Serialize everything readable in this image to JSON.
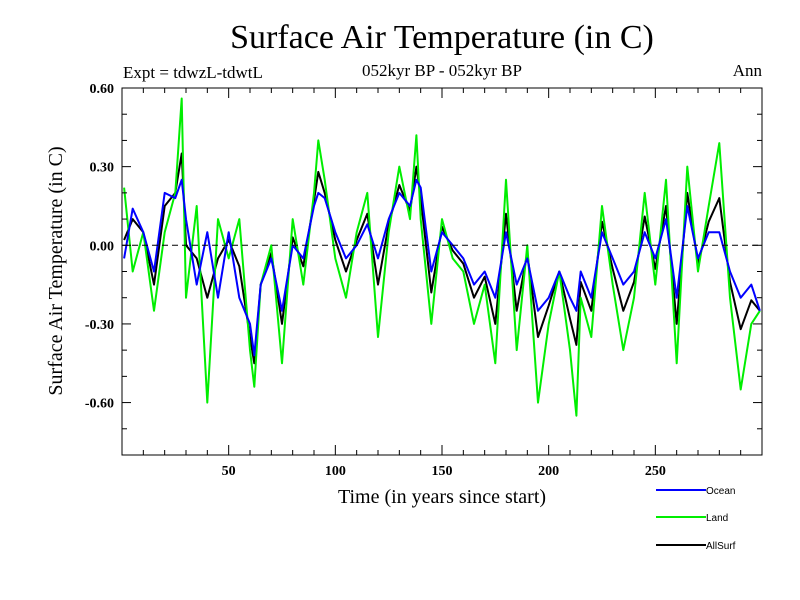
{
  "chart_data": {
    "type": "line",
    "title": "Surface Air Temperature (in C)",
    "subtitle": "052kyr BP - 052kyr BP",
    "left_note": "Expt = tdwzL-tdwtL",
    "right_note": "Ann",
    "xlabel": "Time (in years since start)",
    "ylabel": "Surface Air Temperature (in C)",
    "xlim": [
      0,
      300
    ],
    "ylim": [
      -0.8,
      0.6
    ],
    "x_ticks": [
      50,
      100,
      150,
      200,
      250
    ],
    "x_tick_labels": [
      "50",
      "100",
      "150",
      "200",
      "250"
    ],
    "y_ticks": [
      0.6,
      0.3,
      0.0,
      -0.3,
      -0.6
    ],
    "y_tick_labels": [
      "0.60",
      "0.30",
      "0.00",
      "-0.30",
      "-0.60"
    ],
    "zero_line": "dashed",
    "grid": false,
    "legend_position": "bottom-right",
    "x": [
      1,
      5,
      10,
      15,
      20,
      25,
      28,
      30,
      35,
      40,
      45,
      50,
      55,
      60,
      62,
      65,
      70,
      75,
      80,
      85,
      90,
      92,
      95,
      100,
      105,
      110,
      115,
      120,
      125,
      130,
      135,
      138,
      140,
      145,
      150,
      155,
      160,
      165,
      170,
      175,
      180,
      185,
      190,
      195,
      200,
      205,
      210,
      213,
      215,
      220,
      225,
      230,
      235,
      240,
      245,
      250,
      255,
      260,
      265,
      270,
      275,
      280,
      285,
      290,
      295,
      299
    ],
    "series": [
      {
        "name": "Ocean",
        "color": "#0000ff",
        "values": [
          -0.05,
          0.14,
          0.05,
          -0.1,
          0.2,
          0.18,
          0.25,
          0.1,
          -0.15,
          0.05,
          -0.2,
          0.05,
          -0.2,
          -0.3,
          -0.42,
          -0.15,
          -0.05,
          -0.25,
          0.0,
          -0.05,
          0.15,
          0.2,
          0.18,
          0.05,
          -0.05,
          0.0,
          0.08,
          -0.05,
          0.1,
          0.2,
          0.15,
          0.25,
          0.22,
          -0.1,
          0.05,
          0.0,
          -0.05,
          -0.15,
          -0.1,
          -0.2,
          0.05,
          -0.15,
          -0.05,
          -0.25,
          -0.2,
          -0.1,
          -0.2,
          -0.25,
          -0.1,
          -0.2,
          0.05,
          -0.05,
          -0.15,
          -0.1,
          0.05,
          -0.05,
          0.1,
          -0.2,
          0.15,
          -0.05,
          0.05,
          0.05,
          -0.1,
          -0.2,
          -0.15,
          -0.25
        ]
      },
      {
        "name": "Land",
        "color": "#00ee00",
        "values": [
          0.22,
          -0.1,
          0.05,
          -0.25,
          0.05,
          0.2,
          0.56,
          -0.2,
          0.15,
          -0.6,
          0.1,
          -0.05,
          0.1,
          -0.4,
          -0.54,
          -0.15,
          0.0,
          -0.45,
          0.1,
          -0.15,
          0.2,
          0.4,
          0.25,
          -0.05,
          -0.2,
          0.05,
          0.2,
          -0.35,
          0.05,
          0.3,
          0.1,
          0.42,
          0.1,
          -0.3,
          0.1,
          -0.05,
          -0.1,
          -0.3,
          -0.15,
          -0.45,
          0.25,
          -0.4,
          0.0,
          -0.6,
          -0.3,
          -0.1,
          -0.4,
          -0.65,
          -0.2,
          -0.35,
          0.15,
          -0.15,
          -0.4,
          -0.2,
          0.2,
          -0.15,
          0.25,
          -0.45,
          0.3,
          -0.1,
          0.15,
          0.39,
          -0.2,
          -0.55,
          -0.3,
          -0.25
        ]
      },
      {
        "name": "AllSurf",
        "color": "#000000",
        "values": [
          0.02,
          0.1,
          0.05,
          -0.15,
          0.15,
          0.2,
          0.35,
          0.0,
          -0.05,
          -0.2,
          -0.05,
          0.02,
          -0.08,
          -0.35,
          -0.45,
          -0.15,
          -0.03,
          -0.3,
          0.03,
          -0.08,
          0.17,
          0.28,
          0.2,
          0.02,
          -0.1,
          0.02,
          0.12,
          -0.15,
          0.08,
          0.23,
          0.13,
          0.3,
          0.18,
          -0.18,
          0.07,
          -0.02,
          -0.07,
          -0.2,
          -0.12,
          -0.3,
          0.12,
          -0.25,
          -0.03,
          -0.35,
          -0.23,
          -0.1,
          -0.28,
          -0.38,
          -0.14,
          -0.25,
          0.09,
          -0.09,
          -0.25,
          -0.14,
          0.11,
          -0.09,
          0.15,
          -0.3,
          0.2,
          -0.07,
          0.09,
          0.18,
          -0.14,
          -0.32,
          -0.21,
          -0.25
        ]
      }
    ]
  }
}
